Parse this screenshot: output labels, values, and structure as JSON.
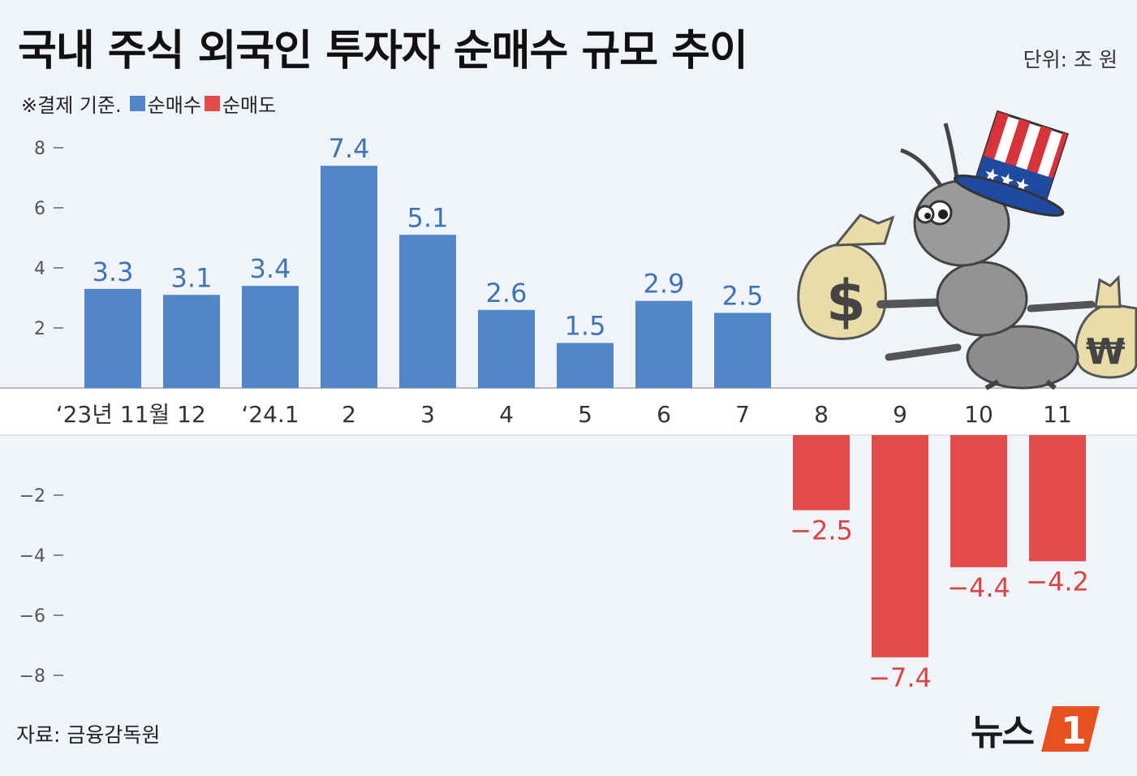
{
  "header": {
    "title": "국내 주식 외국인 투자자 순매수 규모 추이",
    "unit": "단위: 조 원"
  },
  "legend": {
    "note": "※결제 기준.",
    "buy_label": "순매수",
    "sell_label": "순매도"
  },
  "footer": {
    "source": "자료: 금융감독원",
    "brand": "뉴스",
    "brand_badge": "1"
  },
  "colors": {
    "buy": "#5286c8",
    "sell": "#e24b4b",
    "buy_text": "#3f74b5",
    "sell_text": "#d94545",
    "badge": "#e8501f"
  },
  "illustration": "ant-with-uncle-sam-hat-carrying-money-bags",
  "chart_data": {
    "type": "bar",
    "categories": [
      "‘23년 11월",
      "12",
      "‘24.1",
      "2",
      "3",
      "4",
      "5",
      "6",
      "7",
      "8",
      "9",
      "10",
      "11"
    ],
    "values": [
      3.3,
      3.1,
      3.4,
      7.4,
      5.1,
      2.6,
      1.5,
      2.9,
      2.5,
      -2.5,
      -7.4,
      -4.4,
      -4.2
    ],
    "value_labels": [
      "3.3",
      "3.1",
      "3.4",
      "7.4",
      "5.1",
      "2.6",
      "1.5",
      "2.9",
      "2.5",
      "−2.5",
      "−7.4",
      "−4.4",
      "−4.2"
    ],
    "yticks": [
      8,
      6,
      4,
      2,
      -2,
      -4,
      -6,
      -8
    ],
    "ytick_labels": [
      "8",
      "6",
      "4",
      "2",
      "−2",
      "−4",
      "−6",
      "−8"
    ],
    "ylim": [
      -8,
      8
    ],
    "title": "국내 주식 외국인 투자자 순매수 규모 추이",
    "xlabel": "",
    "ylabel": "",
    "grid": false,
    "legend_position": "top-left"
  }
}
